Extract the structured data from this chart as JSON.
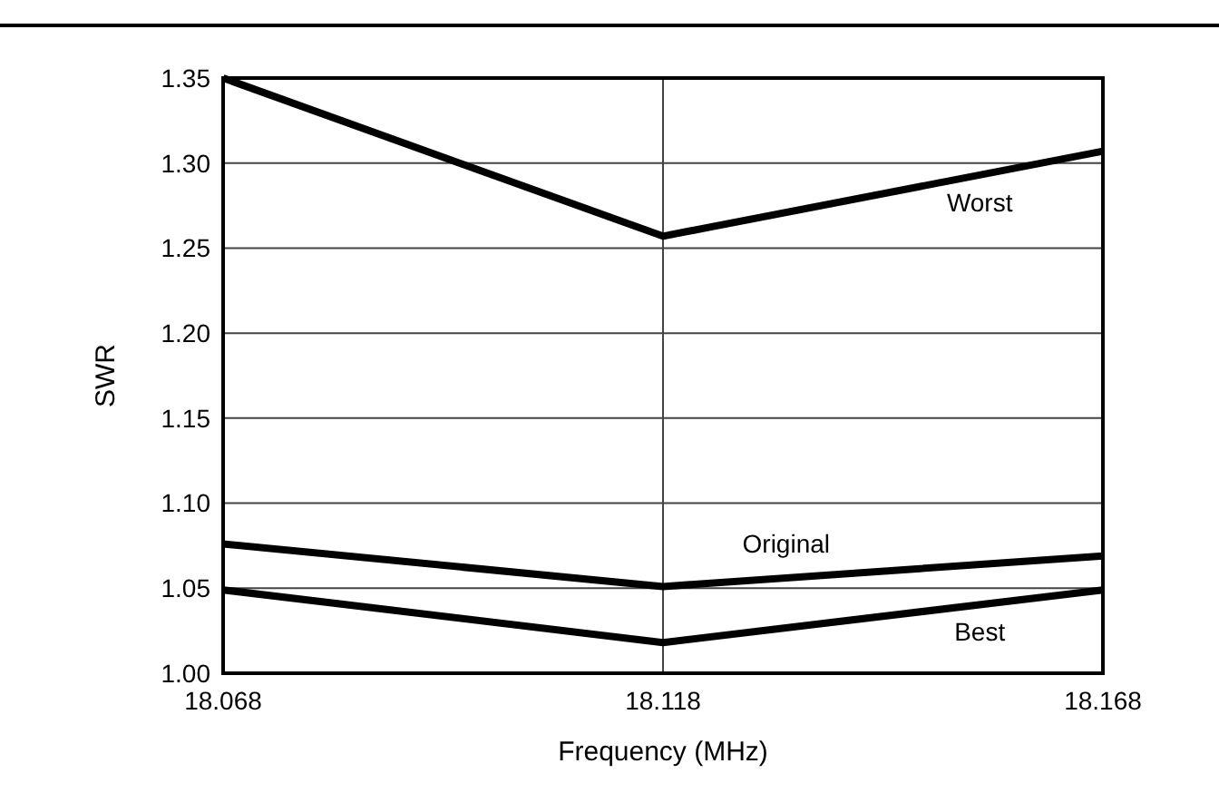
{
  "chart_data": {
    "type": "line",
    "xlabel": "Frequency (MHz)",
    "ylabel": "SWR",
    "x": [
      18.068,
      18.118,
      18.168
    ],
    "series": [
      {
        "name": "Worst",
        "color": "#000000",
        "values": [
          1.35,
          1.257,
          1.307
        ]
      },
      {
        "name": "Original",
        "color": "#000000",
        "values": [
          1.076,
          1.051,
          1.069
        ]
      },
      {
        "name": "Best",
        "color": "#000000",
        "values": [
          1.049,
          1.018,
          1.049
        ]
      }
    ],
    "xlim": [
      18.068,
      18.168
    ],
    "xticks": [
      {
        "value": 18.068,
        "label": "18.068"
      },
      {
        "value": 18.118,
        "label": "18.118"
      },
      {
        "value": 18.168,
        "label": "18.168"
      }
    ],
    "ylim": [
      1.0,
      1.35
    ],
    "yticks": [
      {
        "value": 1.0,
        "label": "1.00"
      },
      {
        "value": 1.05,
        "label": "1.05"
      },
      {
        "value": 1.1,
        "label": "1.10"
      },
      {
        "value": 1.15,
        "label": "1.15"
      },
      {
        "value": 1.2,
        "label": "1.20"
      },
      {
        "value": 1.25,
        "label": "1.25"
      },
      {
        "value": 1.3,
        "label": "1.30"
      },
      {
        "value": 1.35,
        "label": "1.35"
      }
    ],
    "grid": true,
    "marker": "none",
    "line_style": "solid"
  }
}
